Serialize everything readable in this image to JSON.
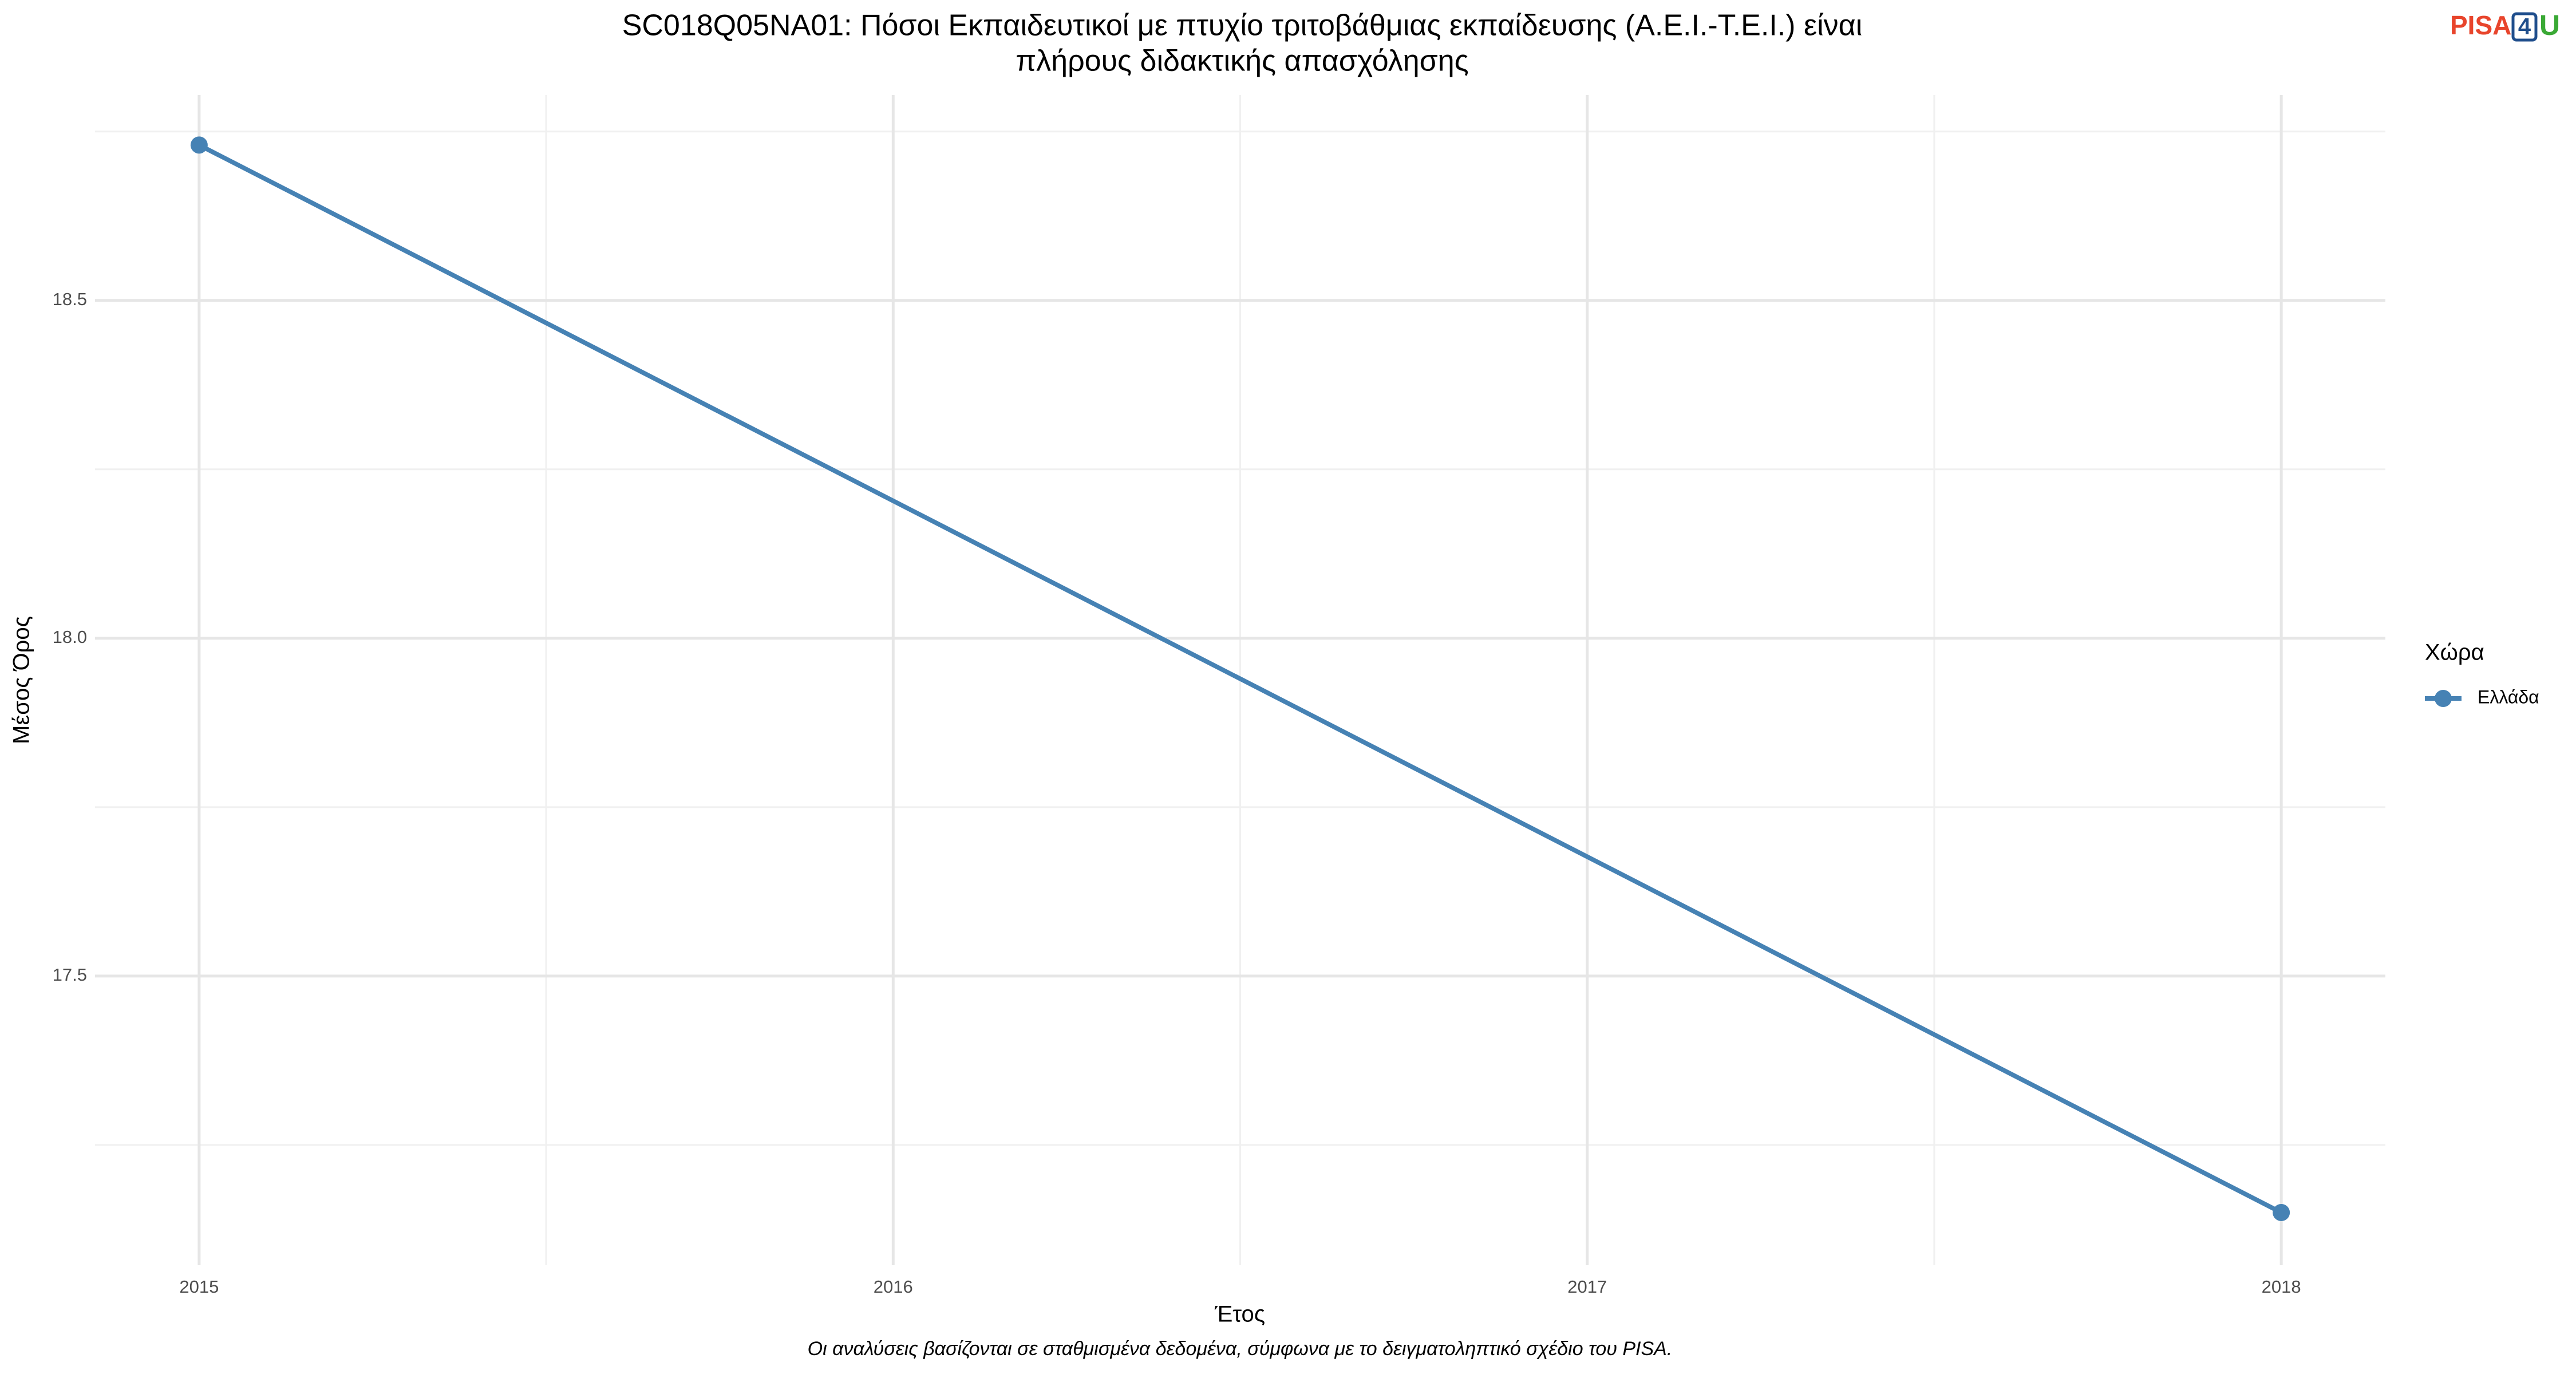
{
  "chart_data": {
    "type": "line",
    "title": [
      "SC018Q05NA01: Πόσοι Εκπαιδευτικοί με πτυχίο τριτοβάθμιας εκπαίδευσης (Α.Ε.Ι.-Τ.Ε.Ι.) είναι",
      "πλήρους διδακτικής απασχόλησης"
    ],
    "x_label": "Έτος",
    "y_label": "Μέσος Όρος",
    "caption": "Οι αναλύσεις βασίζονται σε σταθμισμένα δεδομένα, σύμφωνα με το δειγματοληπτικό σχέδιο του PISA.",
    "legend_title": "Χώρα",
    "legend_position": "right",
    "x": [
      2015,
      2018
    ],
    "series": [
      {
        "name": "Ελλάδα",
        "color": "#4682b4",
        "values": [
          18.73,
          17.15
        ]
      }
    ],
    "xlim": [
      2014.85,
      2018.15
    ],
    "xticks": [
      2015,
      2016,
      2017,
      2018
    ],
    "ylim": [
      17.072,
      18.804
    ],
    "yticks": [
      17.5,
      {
        "value": 18,
        "label": "18.0"
      },
      18.5
    ],
    "grid": true
  },
  "logo": {
    "part1": "PISA",
    "part2": "4",
    "part3": "U"
  }
}
